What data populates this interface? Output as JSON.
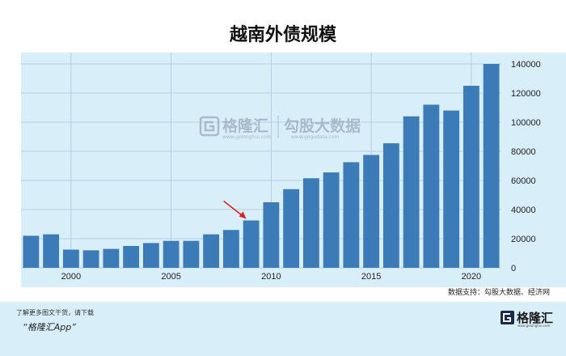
{
  "chart_data": {
    "type": "bar",
    "title": "越南外债规模",
    "x": [
      1998,
      1999,
      2000,
      2001,
      2002,
      2003,
      2004,
      2005,
      2006,
      2007,
      2008,
      2009,
      2010,
      2011,
      2012,
      2013,
      2014,
      2015,
      2016,
      2017,
      2018,
      2019,
      2020,
      2021
    ],
    "values": [
      22000,
      23000,
      12500,
      12000,
      13000,
      15000,
      17000,
      18500,
      18500,
      23000,
      26000,
      32500,
      45000,
      54000,
      61500,
      65500,
      72500,
      77500,
      85500,
      104000,
      112000,
      108000,
      125000,
      140000
    ],
    "xticks": [
      "2000",
      "2005",
      "2010",
      "2015",
      "2020"
    ],
    "yticks": [
      "0",
      "20000",
      "40000",
      "60000",
      "80000",
      "100000",
      "120000",
      "140000"
    ],
    "ylim": [
      0,
      140000
    ],
    "xlim": [
      1997.5,
      2021.5
    ],
    "grid": true,
    "bar_color": "#3a7bb8",
    "plot_background": "#d8eef8",
    "grid_color": "#aac8dc",
    "annotation_arrow_color": "#e02020",
    "annotation_year": 2009
  },
  "source_note": "数据支持：勾股大数据、经济网",
  "watermark": {
    "brand": "格隆汇",
    "partner": "勾股大数据",
    "partner_url": "www.gogudata.com",
    "brand_url": "www.gelonghui.com"
  },
  "footer": {
    "line1": "了解更多图文干货，请下载",
    "line2": "“格隆汇App”",
    "logo_text": "格隆汇",
    "logo_url": "www.gelonghui.com",
    "background": "#d8eef8"
  }
}
